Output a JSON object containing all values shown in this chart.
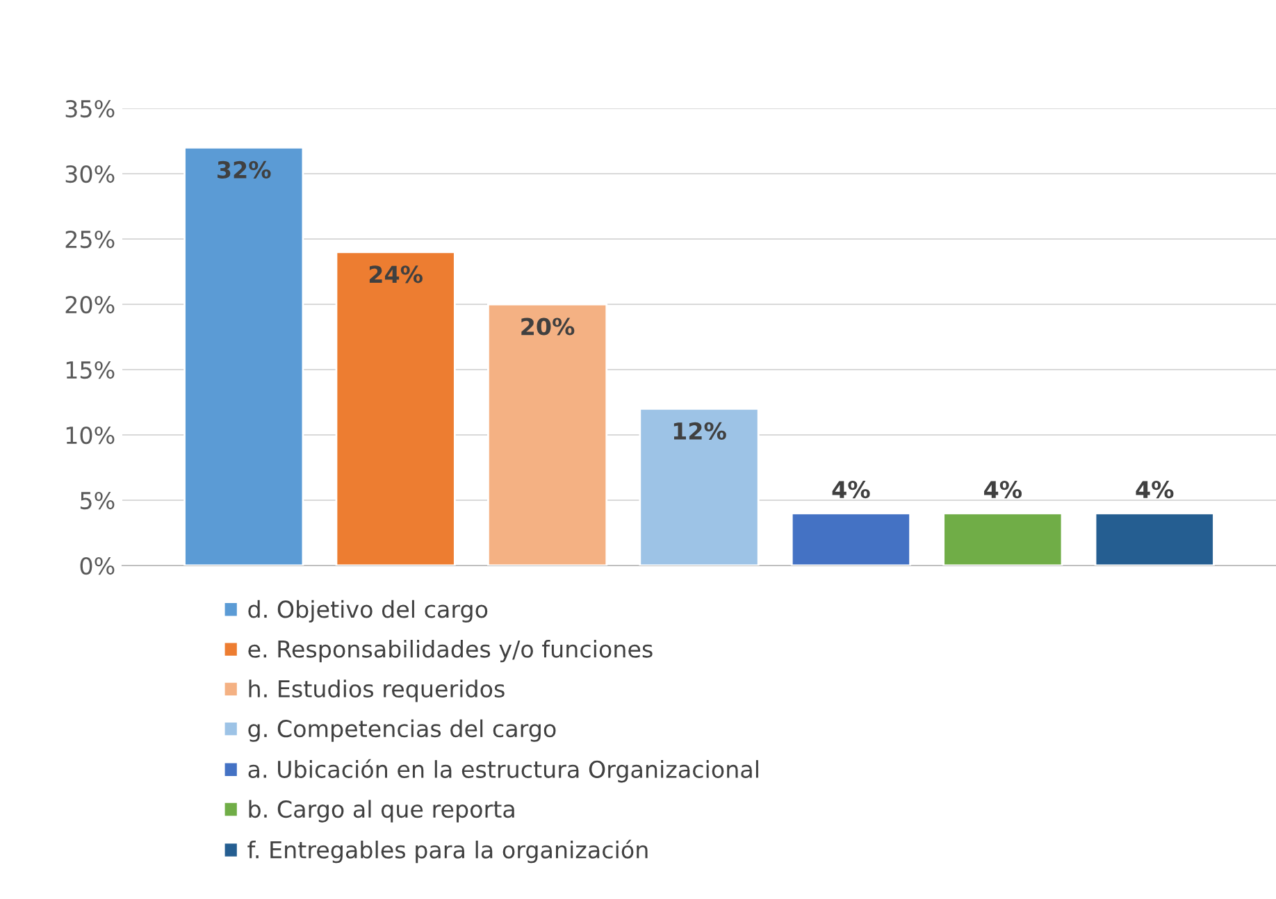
{
  "chart_data": {
    "type": "bar",
    "categories": [
      null,
      null,
      null,
      null,
      null,
      null,
      null
    ],
    "ylim": [
      0,
      35
    ],
    "yticks": [
      {
        "value": 0,
        "label": "0%"
      },
      {
        "value": 5,
        "label": "5%"
      },
      {
        "value": 10,
        "label": "10%"
      },
      {
        "value": 15,
        "label": "15%"
      },
      {
        "value": 20,
        "label": "20%"
      },
      {
        "value": 25,
        "label": "25%"
      },
      {
        "value": 30,
        "label": "30%"
      },
      {
        "value": 35,
        "label": "35%"
      }
    ],
    "grid": "y",
    "legend": "bottom",
    "tick_labels": "y",
    "series": [
      {
        "name": "d. Objetivo del cargo",
        "color": "#5b9bd5",
        "values": [
          32,
          null,
          null,
          null,
          null,
          null,
          null
        ],
        "value_labels": [
          "32%",
          null,
          null,
          null,
          null,
          null,
          null
        ]
      },
      {
        "name": "e. Responsabilidades y/o funciones",
        "color": "#ed7d31",
        "values": [
          null,
          24,
          null,
          null,
          null,
          null,
          null
        ],
        "value_labels": [
          null,
          "24%",
          null,
          null,
          null,
          null,
          null
        ]
      },
      {
        "name": "h. Estudios requeridos",
        "color": "#f4b183",
        "values": [
          null,
          null,
          20,
          null,
          null,
          null,
          null
        ],
        "value_labels": [
          null,
          null,
          "20%",
          null,
          null,
          null,
          null
        ]
      },
      {
        "name": "g. Competencias del cargo",
        "color": "#9dc3e6",
        "values": [
          null,
          null,
          null,
          12,
          null,
          null,
          null
        ],
        "value_labels": [
          null,
          null,
          null,
          "12%",
          null,
          null,
          null
        ]
      },
      {
        "name": "a. Ubicación en la estructura Organizacional",
        "color": "#4472c4",
        "values": [
          null,
          null,
          null,
          null,
          4,
          null,
          null
        ],
        "value_labels": [
          null,
          null,
          null,
          null,
          "4%",
          null,
          null
        ]
      },
      {
        "name": "b. Cargo al que reporta",
        "color": "#70ad47",
        "values": [
          null,
          null,
          null,
          null,
          null,
          4,
          null
        ],
        "value_labels": [
          null,
          null,
          null,
          null,
          null,
          "4%",
          null
        ]
      },
      {
        "name": "f. Entregables para la organización",
        "color": "#255e91",
        "values": [
          null,
          null,
          null,
          null,
          null,
          null,
          4
        ],
        "value_labels": [
          null,
          null,
          null,
          null,
          null,
          null,
          "4%"
        ]
      }
    ]
  }
}
